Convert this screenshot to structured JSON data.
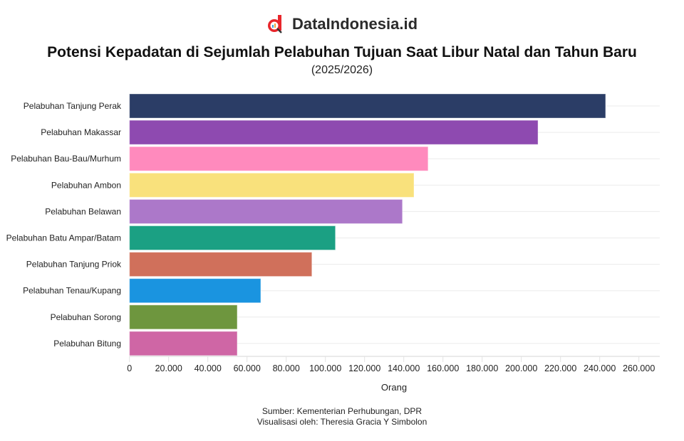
{
  "brand": {
    "name": "DataIndonesia.id",
    "accent": "#e8262b"
  },
  "chart_data": {
    "type": "bar",
    "orientation": "horizontal",
    "title": "Potensi Kepadatan di Sejumlah Pelabuhan Tujuan Saat Libur Natal dan Tahun Baru",
    "subtitle": "(2025/2026)",
    "xlabel": "Orang",
    "ylabel": "",
    "xlim": [
      0,
      270000
    ],
    "xticks": [
      0,
      20000,
      40000,
      60000,
      80000,
      100000,
      120000,
      140000,
      160000,
      180000,
      200000,
      220000,
      240000,
      260000
    ],
    "xtick_labels": [
      "0",
      "20.000",
      "40.000",
      "60.000",
      "80.000",
      "100.000",
      "120.000",
      "140.000",
      "160.000",
      "180.000",
      "200.000",
      "220.000",
      "240.000",
      "260.000"
    ],
    "grid": true,
    "categories": [
      "Pelabuhan Tanjung Perak",
      "Pelabuhan Makassar",
      "Pelabuhan Bau-Bau/Murhum",
      "Pelabuhan Ambon",
      "Pelabuhan Belawan",
      "Pelabuhan Batu Ampar/Batam",
      "Pelabuhan Tanjung Priok",
      "Pelabuhan Tenau/Kupang",
      "Pelabuhan Sorong",
      "Pelabuhan Bitung"
    ],
    "values": [
      243000,
      208500,
      152400,
      145200,
      139300,
      105100,
      93100,
      67000,
      55000,
      55000
    ],
    "colors": [
      "#2b3d66",
      "#8e4ab0",
      "#ff8abd",
      "#f9e17c",
      "#ac78c9",
      "#1ba083",
      "#d0705b",
      "#1a94e0",
      "#6e963e",
      "#cf66a5"
    ]
  },
  "footer": {
    "source": "Sumber: Kementerian Perhubungan, DPR",
    "credit": "Visualisasi oleh: Theresia Gracia Y Simbolon"
  }
}
